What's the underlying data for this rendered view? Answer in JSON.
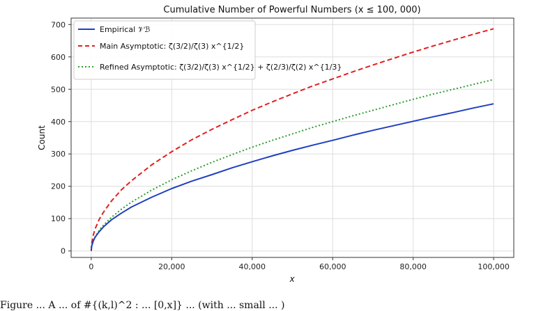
{
  "chart_data": {
    "type": "line",
    "title": "Cumulative Number of Powerful Numbers (x ≤ 100, 000)",
    "xlabel": "x",
    "ylabel": "Count",
    "xlim": [
      -5000,
      105000
    ],
    "ylim": [
      -20,
      720
    ],
    "xticks": [
      0,
      20000,
      40000,
      60000,
      80000,
      100000
    ],
    "xtick_labels": [
      "0",
      "20,000",
      "40,000",
      "60,000",
      "80,000",
      "100,000"
    ],
    "yticks": [
      0,
      100,
      200,
      300,
      400,
      500,
      600,
      700
    ],
    "ytick_labels": [
      "0",
      "100",
      "200",
      "300",
      "400",
      "500",
      "600",
      "700"
    ],
    "grid": true,
    "legend_position": "top-left",
    "series": [
      {
        "name": "Empirical 𝒱ℬ",
        "color": "#1f3fbf",
        "style": "solid",
        "x": [
          0,
          100,
          500,
          1000,
          2000,
          3000,
          5000,
          7500,
          10000,
          15000,
          20000,
          25000,
          30000,
          35000,
          40000,
          45000,
          50000,
          55000,
          60000,
          65000,
          70000,
          75000,
          80000,
          85000,
          90000,
          95000,
          100000
        ],
        "y": [
          1,
          14,
          31,
          43,
          60,
          74,
          96,
          117,
          136,
          166,
          193,
          216,
          236,
          257,
          276,
          294,
          311,
          327,
          342,
          358,
          373,
          387,
          401,
          415,
          428,
          442,
          455
        ]
      },
      {
        "name": "Main Asymptotic: ζ(3/2)/ζ(3) x^{1/2}",
        "color": "#e02020",
        "style": "dashed",
        "x": [
          0,
          100,
          500,
          1000,
          2000,
          3000,
          5000,
          7500,
          10000,
          15000,
          20000,
          25000,
          30000,
          35000,
          40000,
          45000,
          50000,
          55000,
          60000,
          65000,
          70000,
          75000,
          80000,
          85000,
          90000,
          95000,
          100000
        ],
        "y": [
          0,
          22,
          49,
          69,
          98,
          119,
          154,
          189,
          217,
          266,
          307,
          344,
          376,
          406,
          435,
          461,
          486,
          510,
          532,
          554,
          575,
          595,
          615,
          634,
          652,
          670,
          687
        ]
      },
      {
        "name": "Refined Asymptotic: ζ(3/2)/ζ(3) x^{1/2} + ζ(2/3)/ζ(2) x^{1/3}",
        "color": "#2a9d2a",
        "style": "dotted",
        "x": [
          0,
          100,
          500,
          1000,
          2000,
          3000,
          5000,
          7500,
          10000,
          15000,
          20000,
          25000,
          30000,
          35000,
          40000,
          45000,
          50000,
          55000,
          60000,
          65000,
          70000,
          75000,
          80000,
          85000,
          90000,
          95000,
          100000
        ],
        "y": [
          0,
          13,
          31,
          44,
          64,
          79,
          104,
          129,
          151,
          188,
          220,
          248,
          274,
          298,
          321,
          342,
          362,
          382,
          400,
          418,
          435,
          452,
          469,
          485,
          500,
          515,
          530
        ]
      }
    ]
  },
  "caption": "Figure ... A ... of #{(k,l)^2 : ... [0,x]} ... (with ... small ... )"
}
